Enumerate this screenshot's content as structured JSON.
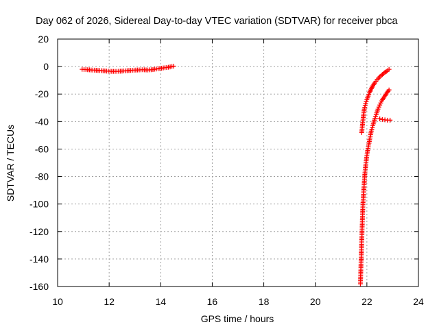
{
  "chart_data": {
    "type": "scatter",
    "title": "Day 062 of 2026, Sidereal Day-to-day VTEC variation (SDTVAR) for receiver pbca",
    "xlabel": "GPS time / hours",
    "ylabel": "SDTVAR / TECUs",
    "xlim": [
      10,
      24
    ],
    "ylim": [
      -160,
      20
    ],
    "xticks": [
      10,
      12,
      14,
      16,
      18,
      20,
      22,
      24
    ],
    "yticks": [
      -160,
      -140,
      -120,
      -100,
      -80,
      -60,
      -40,
      -20,
      0,
      20
    ],
    "xtick_labels": [
      "10",
      "12",
      "14",
      "16",
      "18",
      "20",
      "22",
      "24"
    ],
    "ytick_labels": [
      "-160",
      "-140",
      "-120",
      "-100",
      "-80",
      "-60",
      "-40",
      "-20",
      "0",
      "20"
    ],
    "grid": true,
    "legend": "none",
    "marker": "+",
    "marker_color": "#ff0000",
    "series": [
      {
        "segments": [
          [
            [
              10.95,
              -2
            ],
            [
              11.1,
              -2.2
            ],
            [
              11.3,
              -2.5
            ],
            [
              11.5,
              -2.7
            ],
            [
              11.7,
              -3
            ],
            [
              11.9,
              -3.3
            ],
            [
              12.1,
              -3.5
            ],
            [
              12.3,
              -3.5
            ],
            [
              12.5,
              -3.3
            ],
            [
              12.7,
              -3
            ],
            [
              12.9,
              -2.7
            ],
            [
              13.1,
              -2.5
            ],
            [
              13.3,
              -2.3
            ],
            [
              13.5,
              -2.5
            ],
            [
              13.7,
              -2.2
            ],
            [
              13.9,
              -1.5
            ],
            [
              14.1,
              -1
            ],
            [
              14.3,
              -0.5
            ],
            [
              14.5,
              0.3
            ]
          ],
          [
            [
              21.8,
              -48
            ],
            [
              21.83,
              -42
            ],
            [
              21.86,
              -37
            ],
            [
              21.9,
              -31
            ],
            [
              21.95,
              -27
            ],
            [
              22.0,
              -24
            ],
            [
              22.1,
              -19
            ],
            [
              22.2,
              -15
            ],
            [
              22.3,
              -12
            ],
            [
              22.4,
              -9.5
            ],
            [
              22.5,
              -7.5
            ],
            [
              22.6,
              -5.8
            ],
            [
              22.7,
              -4.2
            ],
            [
              22.8,
              -3
            ],
            [
              22.86,
              -2
            ]
          ],
          [
            [
              21.75,
              -158
            ],
            [
              21.76,
              -152
            ],
            [
              21.77,
              -145
            ],
            [
              21.78,
              -139
            ],
            [
              21.79,
              -133
            ],
            [
              21.8,
              -127
            ],
            [
              21.81,
              -121
            ],
            [
              21.82,
              -115
            ],
            [
              21.83,
              -109
            ],
            [
              21.84,
              -104
            ],
            [
              21.85,
              -99
            ],
            [
              21.87,
              -93
            ],
            [
              21.89,
              -87
            ],
            [
              21.91,
              -81
            ],
            [
              21.93,
              -76
            ],
            [
              21.96,
              -71
            ],
            [
              21.99,
              -66
            ],
            [
              22.03,
              -61
            ],
            [
              22.07,
              -57
            ],
            [
              22.12,
              -52
            ],
            [
              22.17,
              -47
            ],
            [
              22.23,
              -43
            ],
            [
              22.29,
              -39
            ],
            [
              22.36,
              -35
            ],
            [
              22.43,
              -31
            ],
            [
              22.5,
              -28
            ],
            [
              22.57,
              -25
            ],
            [
              22.64,
              -23
            ],
            [
              22.71,
              -21
            ],
            [
              22.78,
              -19
            ],
            [
              22.86,
              -17
            ]
          ],
          [
            [
              22.5,
              -38
            ],
            [
              22.6,
              -38.5
            ],
            [
              22.7,
              -38.8
            ],
            [
              22.8,
              -39
            ],
            [
              22.9,
              -39
            ]
          ]
        ]
      }
    ]
  }
}
